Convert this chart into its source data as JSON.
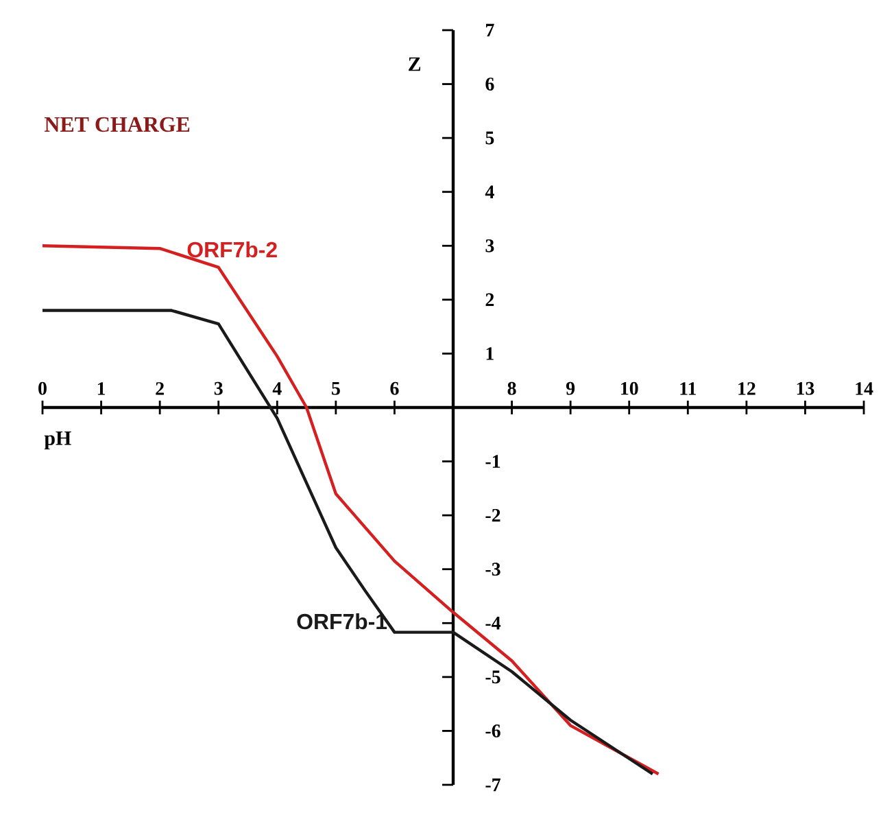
{
  "chart_data": {
    "type": "line",
    "title": "NET CHARGE",
    "xlabel": "pH",
    "ylabel": "Z",
    "xlim": [
      0,
      14
    ],
    "ylim": [
      -7,
      7
    ],
    "xticks": [
      0,
      1,
      2,
      3,
      4,
      5,
      6,
      8,
      9,
      10,
      11,
      12,
      13,
      14
    ],
    "yticks": [
      -7,
      -6,
      -5,
      -4,
      -3,
      -2,
      -1,
      1,
      2,
      3,
      4,
      5,
      6,
      7
    ],
    "marker": "none",
    "line_style": "solid",
    "series": [
      {
        "name": "ORF7b-2",
        "color": "#d42020",
        "x": [
          0,
          2,
          3,
          4,
          4.5,
          5,
          6,
          7,
          8,
          9,
          10.5
        ],
        "values": [
          3,
          2.95,
          2.6,
          0.95,
          0,
          -1.6,
          -2.85,
          -3.8,
          -4.7,
          -5.9,
          -6.8
        ]
      },
      {
        "name": "ORF7b-1",
        "color": "#1a1a1a",
        "x": [
          0,
          2.2,
          3,
          4,
          5,
          5.5,
          6,
          7,
          8,
          9,
          10.4
        ],
        "values": [
          1.8,
          1.8,
          1.55,
          -0.2,
          -2.6,
          -3.4,
          -4.17,
          -4.17,
          -4.9,
          -5.8,
          -6.8
        ]
      }
    ]
  }
}
